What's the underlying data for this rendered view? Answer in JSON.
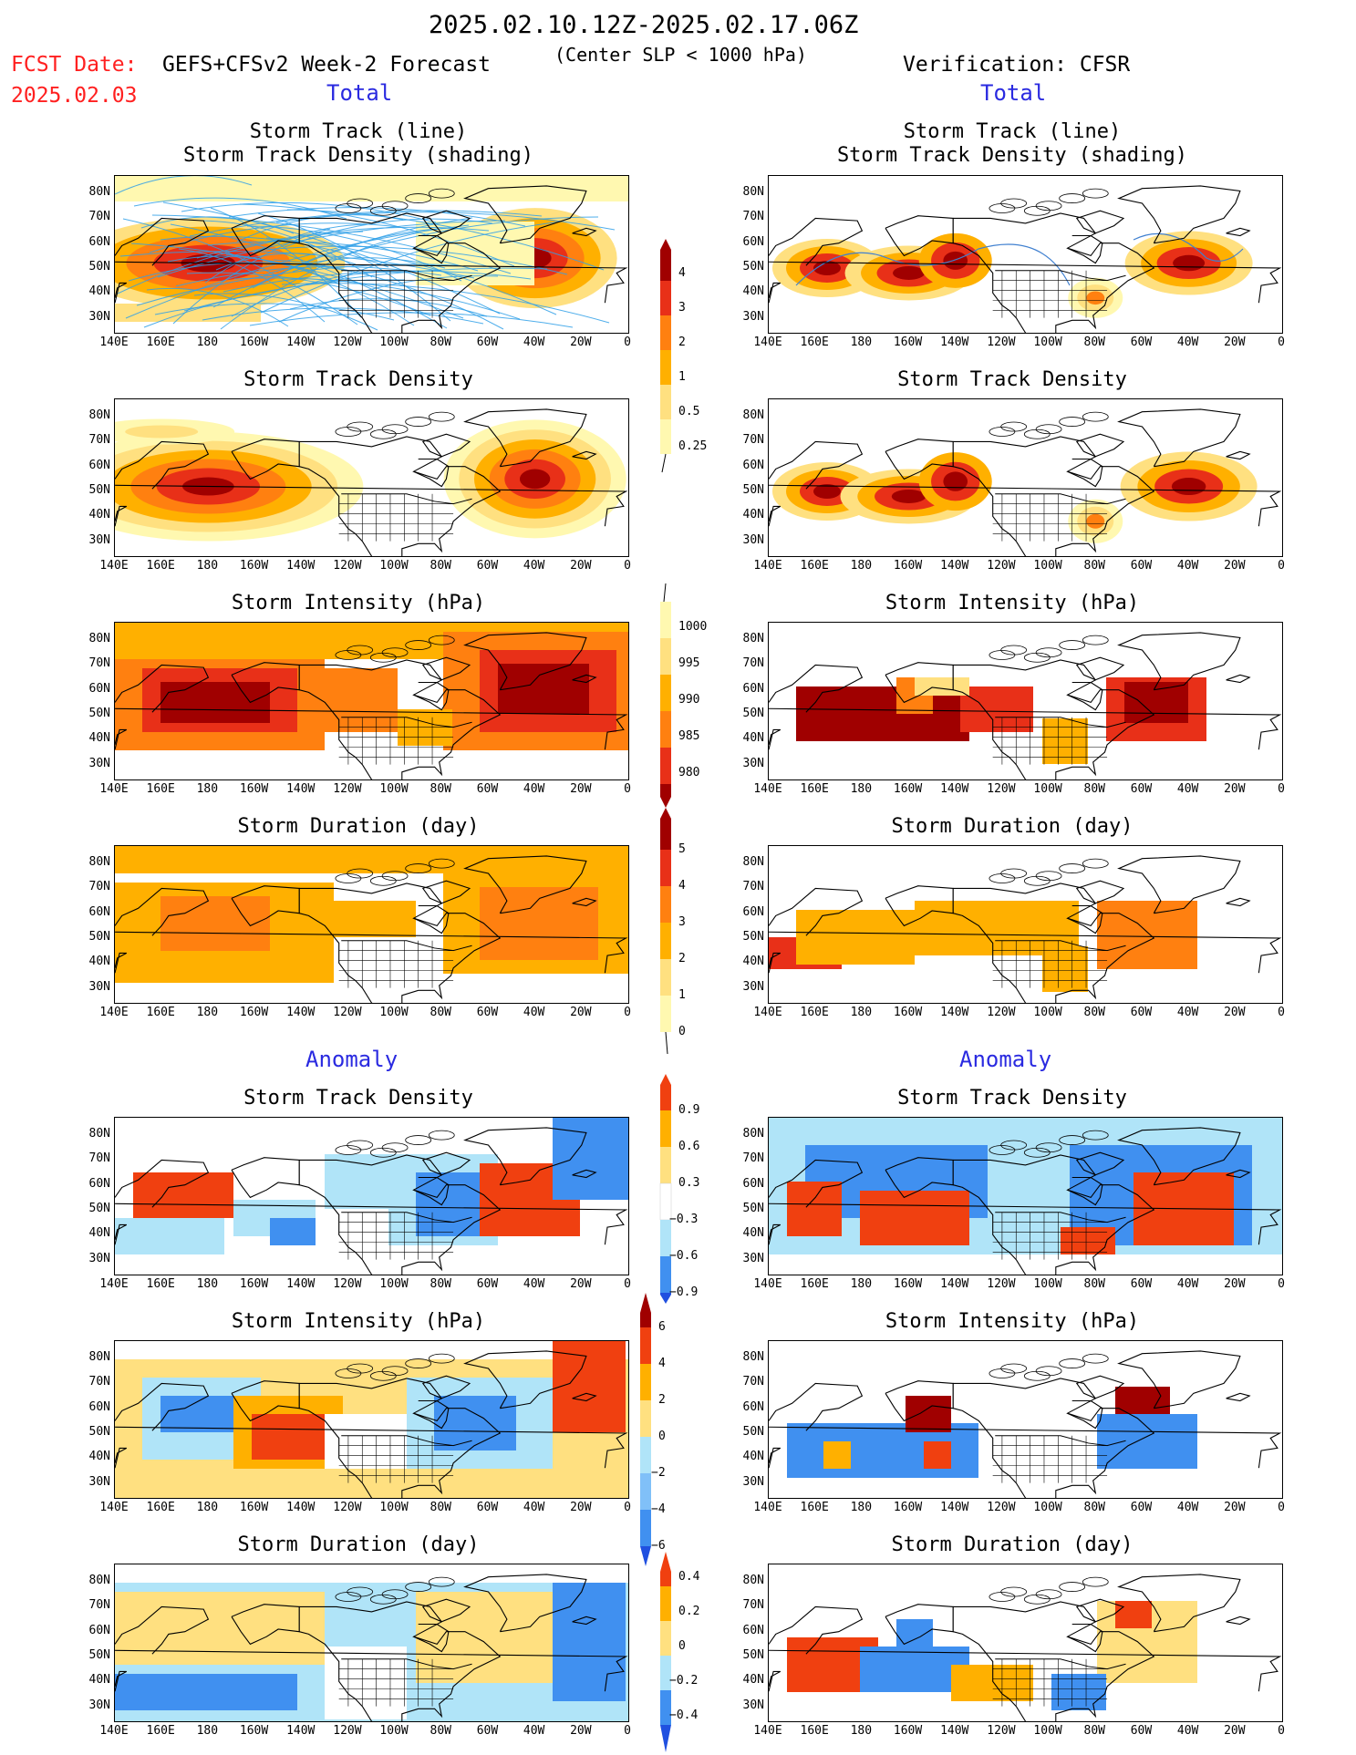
{
  "header": {
    "title": "2025.02.10.12Z-2025.02.17.06Z",
    "fcst_date_label": "FCST Date:",
    "fcst_date": "2025.02.03",
    "forecast": "GEFS+CFSv2 Week-2 Forecast",
    "center_slp": "(Center SLP < 1000 hPa)",
    "verification": "Verification: CFSR"
  },
  "sections": {
    "total": "Total",
    "anomaly": "Anomaly"
  },
  "axis": {
    "lat_ticks": [
      "80N",
      "70N",
      "60N",
      "50N",
      "40N",
      "30N"
    ],
    "lon_ticks": [
      "140E",
      "160E",
      "180",
      "160W",
      "140W",
      "120W",
      "100W",
      "80W",
      "60W",
      "40W",
      "20W",
      "0"
    ]
  },
  "panels": {
    "track_line_title_1": "Storm Track (line)",
    "track_line_title_2": "Storm Track Density (shading)",
    "density_title": "Storm Track Density",
    "intensity_title": "Storm Intensity (hPa)",
    "duration_title": "Storm Duration (day)"
  },
  "colorbars": {
    "density_total": [
      "4",
      "3",
      "2",
      "1",
      "0.5",
      "0.25"
    ],
    "intensity_total": [
      "1000",
      "995",
      "990",
      "985",
      "980"
    ],
    "duration_total": [
      "5",
      "4",
      "3",
      "2",
      "1",
      "0"
    ],
    "density_anom": [
      "0.9",
      "0.6",
      "0.3",
      "−0.3",
      "−0.6",
      "−0.9"
    ],
    "intensity_anom": [
      "6",
      "4",
      "2",
      "0",
      "−2",
      "−4",
      "−6"
    ],
    "duration_anom": [
      "0.4",
      "0.2",
      "0",
      "−0.2",
      "−0.4"
    ]
  },
  "colors": {
    "total_scale": [
      "#fff8b0",
      "#ffe080",
      "#ffb000",
      "#ff8010",
      "#e83018",
      "#a00000"
    ],
    "anom_scale": [
      "#2050e0",
      "#4090f0",
      "#b0e4f8",
      "#ffffff",
      "#ffe080",
      "#ffb000",
      "#f04010"
    ]
  }
}
